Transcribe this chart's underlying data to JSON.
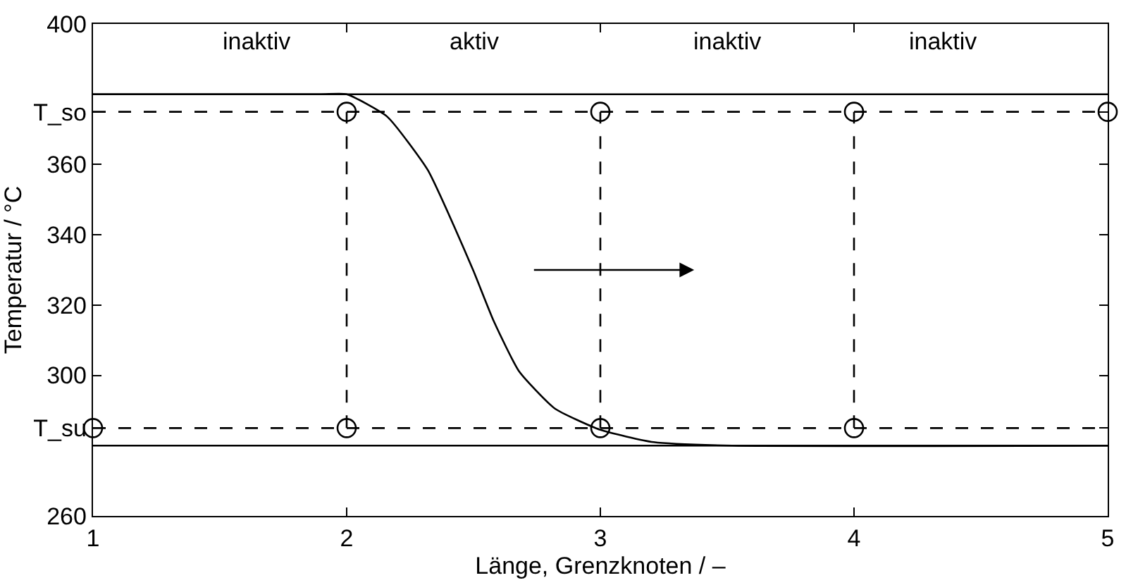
{
  "chart_data": {
    "type": "line",
    "xlabel": "Länge, Grenzknoten / –",
    "ylabel": "Temperatur / °C",
    "xlim": [
      1,
      5
    ],
    "xticks": [
      1,
      2,
      3,
      4,
      5
    ],
    "ylim": [
      260,
      400
    ],
    "yticks": [
      260,
      {
        "value": 285,
        "label": "T_su"
      },
      300,
      320,
      340,
      360,
      {
        "value": 375,
        "label": "T_so"
      },
      400
    ],
    "grid": false,
    "series": [
      {
        "color": "#000000",
        "marker": "none",
        "line_style": "solid",
        "x": [
          1,
          1.9,
          2.0,
          2.16,
          2.32,
          2.42,
          2.5,
          2.58,
          2.68,
          2.82,
          3.0,
          3.21,
          3.52,
          5
        ],
        "values": [
          380,
          380,
          380,
          373.6,
          358.4,
          343,
          329.7,
          315.4,
          301.1,
          290.6,
          284.5,
          281,
          280,
          280
        ]
      },
      {
        "type": "scatter",
        "color": "#000000",
        "marker": "circle",
        "x": [
          1,
          2,
          2,
          3,
          3,
          4,
          4,
          5
        ],
        "values": [
          285,
          285,
          375,
          285,
          375,
          285,
          375,
          375
        ]
      },
      {
        "type": "line",
        "color": "#000000",
        "marker": "none",
        "line_style": "dashed",
        "x": [
          2,
          2
        ],
        "values": [
          285,
          375
        ]
      },
      {
        "type": "line",
        "color": "#000000",
        "marker": "none",
        "line_style": "dashed",
        "x": [
          3,
          3
        ],
        "values": [
          285,
          375
        ]
      },
      {
        "type": "line",
        "color": "#000000",
        "marker": "none",
        "line_style": "dashed",
        "x": [
          4,
          4
        ],
        "values": [
          285,
          375
        ]
      }
    ],
    "ref_lines": [
      {
        "axis": "y",
        "value": 380,
        "color": "#000000",
        "line_style": "solid"
      },
      {
        "axis": "y",
        "value": 280,
        "color": "#000000",
        "line_style": "solid"
      },
      {
        "axis": "y",
        "value": 375,
        "color": "#000000",
        "line_style": "dashed"
      },
      {
        "axis": "y",
        "value": 285,
        "color": "#000000",
        "line_style": "dashed"
      }
    ],
    "annotations": [
      "inaktiv",
      "aktiv",
      "inaktiv",
      "inaktiv"
    ]
  }
}
